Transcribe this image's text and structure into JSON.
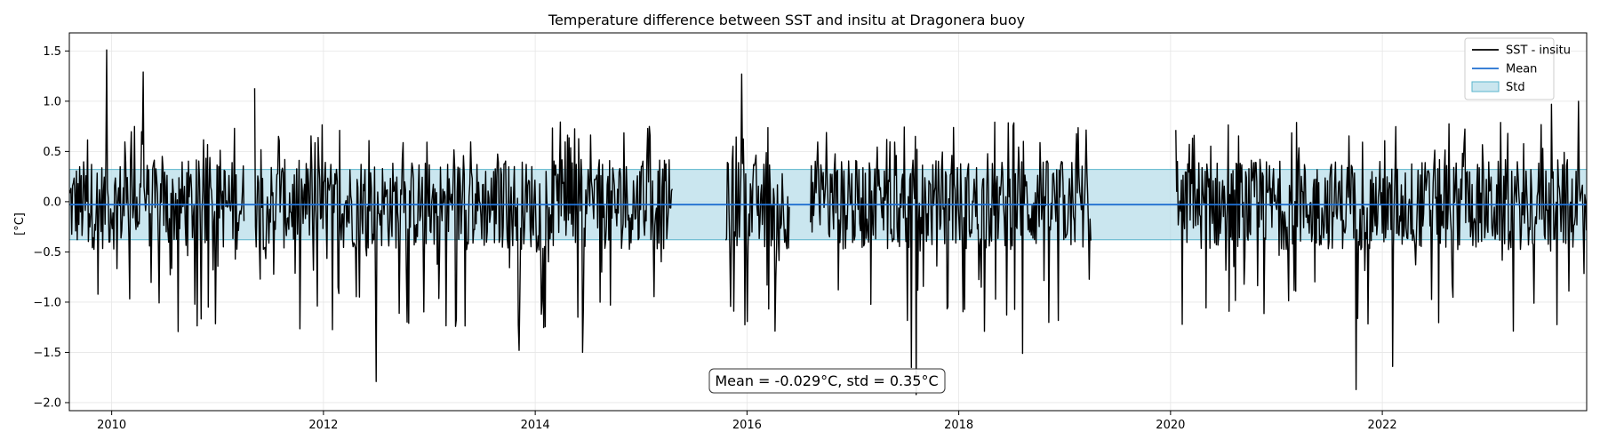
{
  "chart_data": {
    "type": "line",
    "title": "Temperature difference between SST and insitu at Dragonera buoy",
    "xlabel": "",
    "ylabel": "[°C]",
    "xlim": [
      2009.6,
      2023.93
    ],
    "ylim": [
      -2.08,
      1.68
    ],
    "x_ticks": [
      2010,
      2012,
      2014,
      2016,
      2018,
      2020,
      2022
    ],
    "y_ticks": [
      1.5,
      1.0,
      0.5,
      0.0,
      -0.5,
      -1.0,
      -1.5,
      -2.0
    ],
    "x_tick_labels": [
      "2010",
      "2012",
      "2014",
      "2016",
      "2018",
      "2020",
      "2022"
    ],
    "y_tick_labels": [
      "1.5",
      "1.0",
      "0.5",
      "0.0",
      "−0.5",
      "−1.0",
      "−1.5",
      "−2.0"
    ],
    "grid": true,
    "legend_position": "top-right",
    "legend": [
      {
        "label": "SST - insitu",
        "kind": "line",
        "color": "#000000"
      },
      {
        "label": "Mean",
        "kind": "line",
        "color": "#1f6fd0"
      },
      {
        "label": "Std",
        "kind": "patch",
        "color": "#add8e6"
      }
    ],
    "annotation": "Mean = -0.029°C, std = 0.35°C",
    "mean": -0.029,
    "std": 0.35,
    "colors": {
      "series": "#000000",
      "mean": "#1f6fd0",
      "std_fill": "#add8e6",
      "std_edge": "#5ab4cc"
    },
    "series": [
      {
        "name": "SST - insitu",
        "segments": [
          {
            "start": 2009.6,
            "end": 2011.25
          },
          {
            "start": 2011.35,
            "end": 2015.3
          },
          {
            "start": 2015.8,
            "end": 2016.4
          },
          {
            "start": 2016.6,
            "end": 2019.25
          },
          {
            "start": 2020.05,
            "end": 2023.93
          }
        ],
        "peaks": [
          {
            "x": 2009.95,
            "y": 1.51
          },
          {
            "x": 2010.3,
            "y": 1.29
          },
          {
            "x": 2011.35,
            "y": 1.13
          },
          {
            "x": 2012.5,
            "y": -1.79
          },
          {
            "x": 2013.85,
            "y": -1.48
          },
          {
            "x": 2014.45,
            "y": -1.5
          },
          {
            "x": 2015.95,
            "y": 1.27
          },
          {
            "x": 2017.55,
            "y": -1.65
          },
          {
            "x": 2017.6,
            "y": -1.92
          },
          {
            "x": 2018.6,
            "y": -1.51
          },
          {
            "x": 2021.75,
            "y": -1.87
          },
          {
            "x": 2022.1,
            "y": -1.64
          },
          {
            "x": 2023.85,
            "y": 1.0
          },
          {
            "x": 2023.6,
            "y": 0.97
          }
        ]
      }
    ]
  }
}
